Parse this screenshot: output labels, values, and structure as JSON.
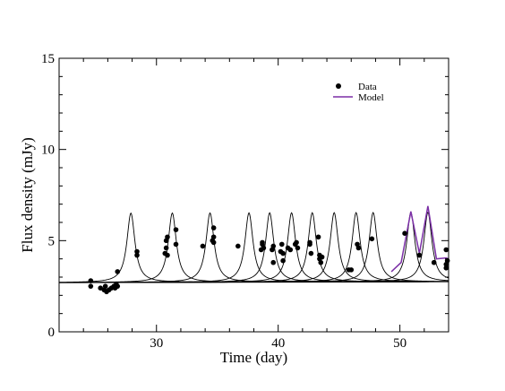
{
  "chart_data": {
    "type": "scatter",
    "xlabel": "Time (day)",
    "ylabel": "Flux density (mJy)",
    "xlim": [
      22,
      54
    ],
    "ylim": [
      0,
      15
    ],
    "x_ticks": [
      30,
      40,
      50
    ],
    "x_tick_labels": [
      "30",
      "40",
      "50"
    ],
    "y_ticks": [
      0,
      5,
      10,
      15
    ],
    "y_tick_labels": [
      "0",
      "5",
      "10",
      "15"
    ],
    "legend": {
      "position": "top-right",
      "entries": [
        {
          "label": "Data",
          "marker": "dot",
          "color": "#000000"
        },
        {
          "label": "Model",
          "marker": "line",
          "color": "#7b2fa6"
        }
      ]
    },
    "baseline": {
      "x": [
        22,
        54
      ],
      "y": [
        2.7,
        2.75
      ]
    },
    "flares": [
      {
        "t0": 27.9,
        "amp": 3.8,
        "width": 0.4
      },
      {
        "t0": 31.3,
        "amp": 3.8,
        "width": 0.4
      },
      {
        "t0": 34.4,
        "amp": 3.8,
        "width": 0.4
      },
      {
        "t0": 37.6,
        "amp": 3.8,
        "width": 0.4
      },
      {
        "t0": 39.3,
        "amp": 3.8,
        "width": 0.4
      },
      {
        "t0": 41.1,
        "amp": 3.8,
        "width": 0.4
      },
      {
        "t0": 42.8,
        "amp": 3.8,
        "width": 0.4
      },
      {
        "t0": 44.6,
        "amp": 3.8,
        "width": 0.4
      },
      {
        "t0": 46.4,
        "amp": 3.8,
        "width": 0.4
      },
      {
        "t0": 47.8,
        "amp": 3.8,
        "width": 0.4
      },
      {
        "t0": 50.9,
        "amp": 3.8,
        "width": 0.4
      },
      {
        "t0": 52.3,
        "amp": 3.8,
        "width": 0.4
      }
    ],
    "series": [
      {
        "name": "Data",
        "kind": "scatter",
        "points": [
          [
            24.6,
            2.8
          ],
          [
            24.6,
            2.5
          ],
          [
            25.4,
            2.4
          ],
          [
            25.7,
            2.3
          ],
          [
            25.8,
            2.5
          ],
          [
            25.9,
            2.2
          ],
          [
            26.1,
            2.3
          ],
          [
            26.3,
            2.4
          ],
          [
            26.5,
            2.5
          ],
          [
            26.6,
            2.4
          ],
          [
            26.7,
            2.6
          ],
          [
            26.8,
            2.5
          ],
          [
            26.8,
            3.3
          ],
          [
            28.4,
            4.4
          ],
          [
            28.4,
            4.2
          ],
          [
            30.7,
            4.3
          ],
          [
            30.8,
            4.6
          ],
          [
            30.8,
            5.0
          ],
          [
            30.9,
            5.2
          ],
          [
            30.9,
            4.2
          ],
          [
            31.6,
            5.6
          ],
          [
            31.6,
            4.8
          ],
          [
            33.8,
            4.7
          ],
          [
            34.6,
            5.0
          ],
          [
            34.7,
            5.2
          ],
          [
            34.7,
            5.7
          ],
          [
            34.7,
            4.9
          ],
          [
            36.7,
            4.7
          ],
          [
            38.6,
            4.5
          ],
          [
            38.7,
            4.8
          ],
          [
            38.7,
            4.9
          ],
          [
            38.8,
            4.6
          ],
          [
            39.5,
            4.5
          ],
          [
            39.6,
            3.8
          ],
          [
            39.6,
            4.7
          ],
          [
            40.2,
            4.4
          ],
          [
            40.3,
            4.8
          ],
          [
            40.4,
            3.9
          ],
          [
            40.4,
            4.3
          ],
          [
            40.8,
            4.6
          ],
          [
            41.0,
            4.5
          ],
          [
            41.4,
            4.8
          ],
          [
            41.5,
            4.9
          ],
          [
            41.6,
            4.6
          ],
          [
            42.6,
            4.9
          ],
          [
            42.6,
            4.8
          ],
          [
            42.7,
            4.3
          ],
          [
            43.3,
            5.2
          ],
          [
            43.4,
            4.2
          ],
          [
            43.4,
            4.0
          ],
          [
            43.5,
            3.8
          ],
          [
            43.6,
            4.1
          ],
          [
            45.8,
            3.4
          ],
          [
            46.0,
            3.4
          ],
          [
            46.5,
            4.8
          ],
          [
            46.6,
            4.6
          ],
          [
            47.7,
            5.1
          ],
          [
            50.4,
            5.4
          ],
          [
            51.6,
            4.2
          ],
          [
            52.8,
            3.8
          ],
          [
            53.8,
            4.5
          ],
          [
            53.8,
            3.7
          ],
          [
            53.8,
            3.5
          ],
          [
            53.9,
            3.9
          ]
        ]
      },
      {
        "name": "Model",
        "kind": "line",
        "x": [
          49.3,
          50.1,
          50.9,
          51.6,
          52.3,
          53.0,
          53.8,
          54.0
        ],
        "y": [
          3.3,
          3.8,
          6.6,
          4.3,
          6.9,
          4.0,
          4.05,
          4.0
        ]
      }
    ]
  }
}
